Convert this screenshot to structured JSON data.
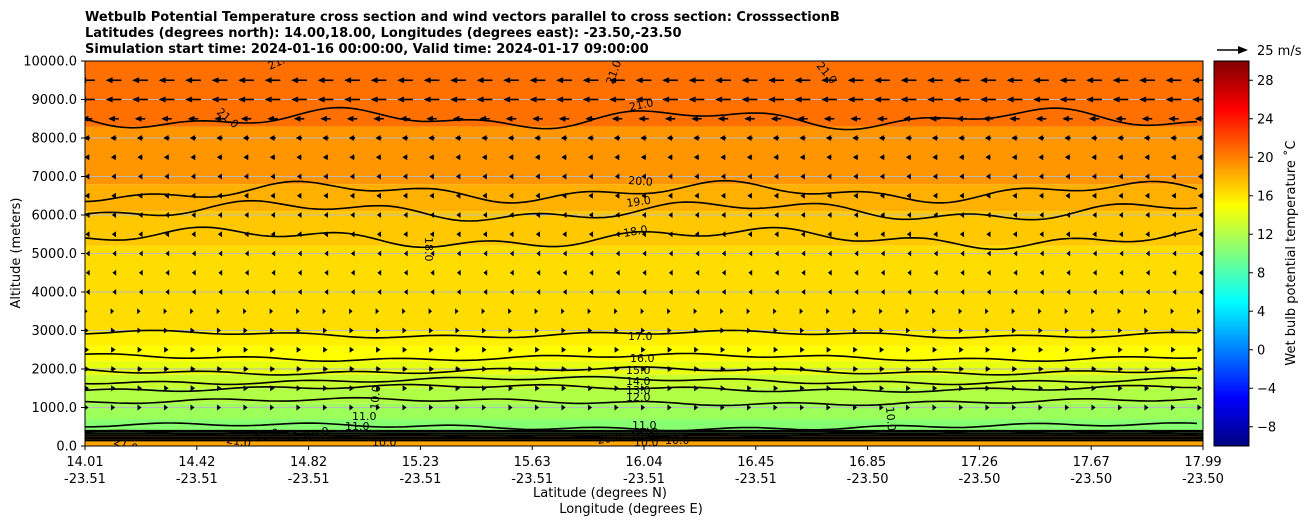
{
  "chart_data": {
    "type": "filled-contour cross section with contour lines and wind vectors",
    "title_lines": [
      "Wetbulb Potential Temperature cross section and wind vectors parallel to cross section: CrosssectionB",
      "Latitudes (degrees north): 14.00,18.00, Longitudes (degrees east): -23.50,-23.50",
      "Simulation start time: 2024-01-16 00:00:00, Valid time: 2024-01-17 09:00:00"
    ],
    "xlabel_lat": "Latitude (degrees N)",
    "xlabel_lon": "Longitude (degrees E)",
    "ylabel": "Altitude (meters)",
    "x_ticks": [
      {
        "lat": "14.01",
        "lon": "-23.51"
      },
      {
        "lat": "14.42",
        "lon": "-23.51"
      },
      {
        "lat": "14.82",
        "lon": "-23.51"
      },
      {
        "lat": "15.23",
        "lon": "-23.51"
      },
      {
        "lat": "15.63",
        "lon": "-23.51"
      },
      {
        "lat": "16.04",
        "lon": "-23.51"
      },
      {
        "lat": "16.45",
        "lon": "-23.51"
      },
      {
        "lat": "16.85",
        "lon": "-23.50"
      },
      {
        "lat": "17.26",
        "lon": "-23.50"
      },
      {
        "lat": "17.67",
        "lon": "-23.50"
      },
      {
        "lat": "17.99",
        "lon": "-23.50"
      }
    ],
    "y_ticks": [
      "0.0",
      "1000.0",
      "2000.0",
      "3000.0",
      "4000.0",
      "5000.0",
      "6000.0",
      "7000.0",
      "8000.0",
      "9000.0",
      "10000.0"
    ],
    "ylim": [
      0,
      10000
    ],
    "colorbar": {
      "label": "Wet bulb potential temperature ˚C",
      "range": [
        -10,
        30
      ],
      "ticks": [
        "−8",
        "−4",
        "0",
        "4",
        "8",
        "12",
        "16",
        "20",
        "24",
        "28"
      ]
    },
    "quiver_key": "25 m/s",
    "contour_labels": [
      "21.0",
      "21.0",
      "21.0",
      "21.0",
      "21.0",
      "20.0",
      "19.0",
      "18.0",
      "18.0",
      "17.0",
      "16.0",
      "15.0",
      "14.0",
      "13.0",
      "12.0",
      "11.0",
      "10.0",
      "11.0",
      "11.0",
      "10.0",
      "10.0",
      "11.0",
      "11.0",
      "10.0",
      "10.0",
      "10.0",
      "10.0",
      "10.0",
      "20.0",
      "21.0",
      "21.0"
    ],
    "contour_levels": [
      {
        "value": 21.0,
        "altitude_m": 8500
      },
      {
        "value": 20.0,
        "altitude_m": 6600
      },
      {
        "value": 19.0,
        "altitude_m": 6100
      },
      {
        "value": 18.0,
        "altitude_m": 5400
      },
      {
        "value": 17.0,
        "altitude_m": 2900
      },
      {
        "value": 16.0,
        "altitude_m": 2300
      },
      {
        "value": 15.0,
        "altitude_m": 1950
      },
      {
        "value": 14.0,
        "altitude_m": 1700
      },
      {
        "value": 13.0,
        "altitude_m": 1500
      },
      {
        "value": 12.0,
        "altitude_m": 1150
      },
      {
        "value": 11.0,
        "altitude_m": 500
      },
      {
        "value": 10.0,
        "altitude_m": 300
      }
    ],
    "fill_bands": [
      {
        "from_m": 0,
        "to_m": 300,
        "value": 18.5,
        "color": "#ffa400"
      },
      {
        "from_m": 300,
        "to_m": 700,
        "value": 10.5,
        "color": "#86ff70"
      },
      {
        "from_m": 700,
        "to_m": 1100,
        "value": 11.5,
        "color": "#9dff59"
      },
      {
        "from_m": 1100,
        "to_m": 1500,
        "value": 12.5,
        "color": "#b0ff46"
      },
      {
        "from_m": 1500,
        "to_m": 1850,
        "value": 13.5,
        "color": "#c8ff30"
      },
      {
        "from_m": 1850,
        "to_m": 2200,
        "value": 14.5,
        "color": "#e8ff10"
      },
      {
        "from_m": 2200,
        "to_m": 2600,
        "value": 15.5,
        "color": "#ffff00"
      },
      {
        "from_m": 2600,
        "to_m": 3000,
        "value": 16.5,
        "color": "#fff000"
      },
      {
        "from_m": 3000,
        "to_m": 5200,
        "value": 17.5,
        "color": "#ffdd00"
      },
      {
        "from_m": 5200,
        "to_m": 6100,
        "value": 18.5,
        "color": "#ffc800"
      },
      {
        "from_m": 6100,
        "to_m": 6800,
        "value": 19.5,
        "color": "#ffb000"
      },
      {
        "from_m": 6800,
        "to_m": 8300,
        "value": 20.5,
        "color": "#ff9500"
      },
      {
        "from_m": 8300,
        "to_m": 10000,
        "value": 21.5,
        "color": "#ff7000"
      }
    ],
    "wind_rows": [
      {
        "altitude_m": 9500,
        "u_ms": -15
      },
      {
        "altitude_m": 9000,
        "u_ms": -15
      },
      {
        "altitude_m": 8500,
        "u_ms": -10
      },
      {
        "altitude_m": 8000,
        "u_ms": -6
      },
      {
        "altitude_m": 7500,
        "u_ms": -5
      },
      {
        "altitude_m": 7000,
        "u_ms": -4
      },
      {
        "altitude_m": 6500,
        "u_ms": -4
      },
      {
        "altitude_m": 6000,
        "u_ms": -3
      },
      {
        "altitude_m": 5500,
        "u_ms": -3
      },
      {
        "altitude_m": 5000,
        "u_ms": -2
      },
      {
        "altitude_m": 4500,
        "u_ms": -2
      },
      {
        "altitude_m": 4000,
        "u_ms": -2
      },
      {
        "altitude_m": 3500,
        "u_ms": 1
      },
      {
        "altitude_m": 3000,
        "u_ms": 3
      },
      {
        "altitude_m": 2500,
        "u_ms": 4
      },
      {
        "altitude_m": 2000,
        "u_ms": 5
      },
      {
        "altitude_m": 1500,
        "u_ms": 4
      },
      {
        "altitude_m": 1000,
        "u_ms": 3
      }
    ],
    "colors": {
      "colorbar_stops": [
        "#00007f",
        "#0000ff",
        "#007fff",
        "#00ffff",
        "#7fff7f",
        "#ffff00",
        "#ff7f00",
        "#ff0000",
        "#7f0000"
      ],
      "gridline": "#bbbbbb",
      "contour": "#000000"
    }
  }
}
